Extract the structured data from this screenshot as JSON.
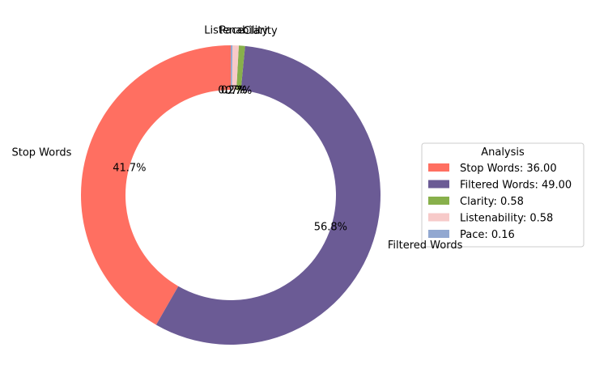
{
  "chart_data": {
    "type": "pie",
    "donut": true,
    "legend_title": "Analysis",
    "legend_placement": "right",
    "slices": [
      {
        "label": "Stop Words",
        "value": 36.0,
        "pct_label": "41.7%",
        "legend": "Stop Words: 36.00",
        "color": "#ff6f61"
      },
      {
        "label": "Filtered Words",
        "value": 49.0,
        "pct_label": "56.8%",
        "legend": "Filtered Words: 49.00",
        "color": "#6b5b95"
      },
      {
        "label": "Clarity",
        "value": 0.58,
        "pct_label": "0.7%",
        "legend": "Clarity: 0.58",
        "color": "#88b04b"
      },
      {
        "label": "Listenability",
        "value": 0.58,
        "pct_label": "0.7%",
        "legend": "Listenability: 0.58",
        "color": "#f7cac9"
      },
      {
        "label": "Pace",
        "value": 0.16,
        "pct_label": "0.2%",
        "legend": "Pace: 0.16",
        "color": "#92a8d1"
      }
    ]
  }
}
